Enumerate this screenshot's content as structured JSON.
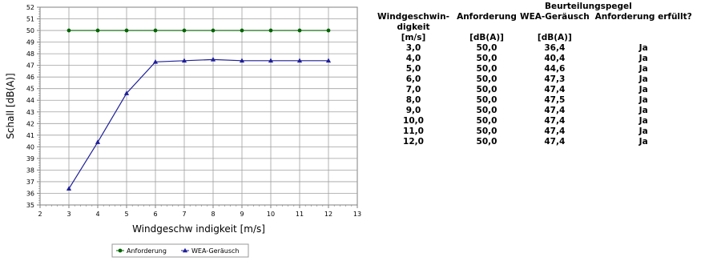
{
  "chart_data": {
    "type": "line",
    "xlabel": "Windgeschw indigkeit [m/s]",
    "ylabel": "Schall [dB(A)]",
    "xlim": [
      2,
      13
    ],
    "ylim": [
      35,
      52
    ],
    "x_ticks": [
      "2",
      "3",
      "4",
      "5",
      "6",
      "7",
      "8",
      "9",
      "10",
      "11",
      "12",
      "13"
    ],
    "y_ticks": [
      "35",
      "36",
      "37",
      "38",
      "39",
      "40",
      "41",
      "42",
      "43",
      "44",
      "45",
      "46",
      "47",
      "48",
      "49",
      "50",
      "51",
      "52"
    ],
    "grid": true,
    "legend_position": "bottom",
    "x": [
      3,
      4,
      5,
      6,
      7,
      8,
      9,
      10,
      11,
      12
    ],
    "series": [
      {
        "name": "Anforderung",
        "color": "#006400",
        "marker": "circle",
        "values": [
          50.0,
          50.0,
          50.0,
          50.0,
          50.0,
          50.0,
          50.0,
          50.0,
          50.0,
          50.0
        ]
      },
      {
        "name": "WEA-Geräusch",
        "color": "#1f1f9a",
        "marker": "triangle",
        "values": [
          36.4,
          40.4,
          44.6,
          47.3,
          47.4,
          47.5,
          47.4,
          47.4,
          47.4,
          47.4
        ]
      }
    ]
  },
  "table": {
    "group_header": "Beurteilungspegel",
    "headers": [
      "Windgeschwin-",
      "Anforderung",
      "WEA-Geräusch",
      "Anforderung erfüllt?"
    ],
    "header_cont": "digkeit",
    "units": [
      "[m/s]",
      "[dB(A)]",
      "[dB(A)]",
      ""
    ],
    "rows": [
      [
        "3,0",
        "50,0",
        "36,4",
        "Ja"
      ],
      [
        "4,0",
        "50,0",
        "40,4",
        "Ja"
      ],
      [
        "5,0",
        "50,0",
        "44,6",
        "Ja"
      ],
      [
        "6,0",
        "50,0",
        "47,3",
        "Ja"
      ],
      [
        "7,0",
        "50,0",
        "47,4",
        "Ja"
      ],
      [
        "8,0",
        "50,0",
        "47,5",
        "Ja"
      ],
      [
        "9,0",
        "50,0",
        "47,4",
        "Ja"
      ],
      [
        "10,0",
        "50,0",
        "47,4",
        "Ja"
      ],
      [
        "11,0",
        "50,0",
        "47,4",
        "Ja"
      ],
      [
        "12,0",
        "50,0",
        "47,4",
        "Ja"
      ]
    ]
  }
}
